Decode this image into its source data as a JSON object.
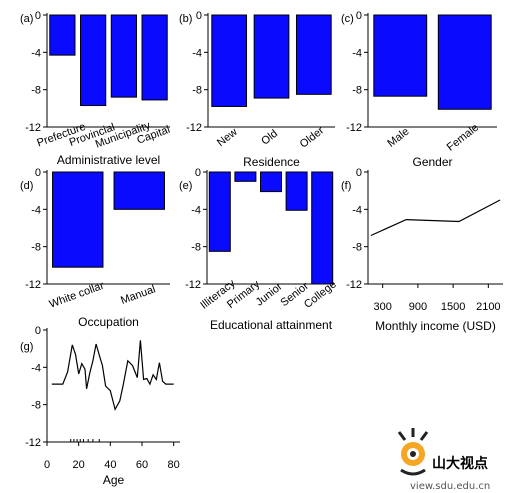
{
  "chart_data": [
    {
      "panel": "(a)",
      "type": "bar",
      "xlabel": "Administrative level",
      "categories": [
        "Prefecture",
        "Provincial",
        "Municipality",
        "Capital"
      ],
      "values": [
        -4.3,
        -9.7,
        -8.8,
        -9.1
      ],
      "ylim": [
        -12,
        0
      ],
      "yticks": [
        0,
        -4,
        -8,
        -12
      ],
      "grid": false
    },
    {
      "panel": "(b)",
      "type": "bar",
      "xlabel": "Residence",
      "categories": [
        "New",
        "Old",
        "Older"
      ],
      "values": [
        -9.8,
        -8.9,
        -8.5
      ],
      "ylim": [
        -12,
        0
      ],
      "yticks": [
        0,
        -4,
        -8,
        -12
      ],
      "grid": false
    },
    {
      "panel": "(c)",
      "type": "bar",
      "xlabel": "Gender",
      "categories": [
        "Male",
        "Female"
      ],
      "values": [
        -8.7,
        -10.1
      ],
      "ylim": [
        -12,
        0
      ],
      "yticks": [
        0,
        -4,
        -8,
        -12
      ],
      "grid": false
    },
    {
      "panel": "(d)",
      "type": "bar",
      "xlabel": "Occupation",
      "categories": [
        "White collar",
        "Manual"
      ],
      "values": [
        -10.2,
        -4.0
      ],
      "ylim": [
        -12,
        0
      ],
      "yticks": [
        0,
        -4,
        -8,
        -12
      ],
      "grid": false
    },
    {
      "panel": "(e)",
      "type": "bar",
      "xlabel": "Educational attainment",
      "categories": [
        "Illiteracy",
        "Primary",
        "Junior",
        "Senior",
        "College"
      ],
      "values": [
        -8.5,
        -1.0,
        -2.1,
        -4.1,
        -12.0
      ],
      "ylim": [
        -12,
        0
      ],
      "yticks": [
        0,
        -4,
        -8,
        -12
      ],
      "grid": false
    },
    {
      "panel": "(f)",
      "type": "line",
      "xlabel": "Monthly income (USD)",
      "x": [
        100,
        700,
        1600,
        2300
      ],
      "y": [
        -6.8,
        -5.1,
        -5.3,
        -3.0
      ],
      "xticks": [
        300,
        900,
        1500,
        2100
      ],
      "xlim": [
        50,
        2350
      ],
      "ylim": [
        -12,
        0
      ],
      "yticks": [
        0,
        -4,
        -8,
        -12
      ],
      "grid": false
    },
    {
      "panel": "(g)",
      "type": "line",
      "xlabel": "Age",
      "x": [
        3,
        10,
        13,
        16,
        18,
        20,
        22,
        24,
        25,
        27,
        29,
        31,
        33,
        35,
        37,
        40,
        43,
        46,
        48,
        51,
        54,
        57,
        59,
        61,
        63,
        65,
        67,
        69,
        71,
        73,
        75,
        80
      ],
      "y": [
        -5.8,
        -5.8,
        -4.5,
        -1.6,
        -2.6,
        -4.7,
        -3.6,
        -4.2,
        -6.3,
        -4.6,
        -3.3,
        -1.5,
        -2.7,
        -3.8,
        -6.0,
        -6.5,
        -8.5,
        -7.6,
        -6.0,
        -3.3,
        -3.8,
        -5.1,
        -1.1,
        -5.3,
        -5.2,
        -5.8,
        -4.8,
        -5.3,
        -3.5,
        -5.5,
        -5.8,
        -5.8
      ],
      "xticks": [
        0,
        20,
        40,
        60,
        80
      ],
      "xlim": [
        0,
        84
      ],
      "ylim": [
        -12,
        0
      ],
      "yticks": [
        0,
        -4,
        -8,
        -12
      ],
      "grid": false
    }
  ],
  "watermark": {
    "logo_text": "山大视点",
    "url": "view.sdu.edu.cn"
  }
}
